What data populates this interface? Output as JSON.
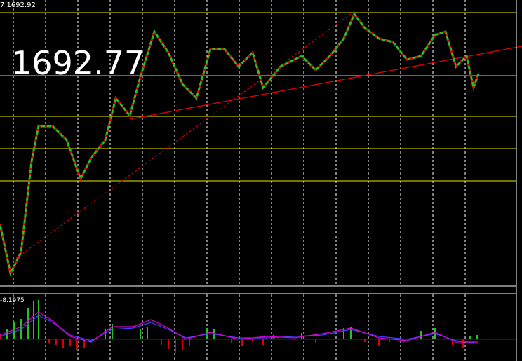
{
  "header": {
    "top_label": "7 1692.92"
  },
  "price_label": "1692.77",
  "indicator": {
    "label": "-8.1975"
  }
}
